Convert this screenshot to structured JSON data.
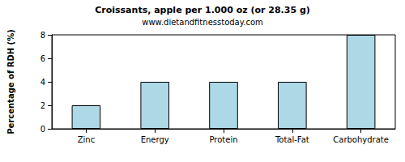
{
  "chart_data": {
    "type": "bar",
    "title": "Croissants, apple per 1.000 oz (or 28.35 g)",
    "subtitle": "www.dietandfitnesstoday.com",
    "y_label": "Percentage of RDH (%)",
    "categories": [
      "Zinc",
      "Energy",
      "Protein",
      "Total-Fat",
      "Carbohydrate"
    ],
    "values": [
      2,
      4,
      4,
      4,
      8
    ],
    "color": "#add8e6",
    "ylim": [
      0,
      8
    ],
    "yticks": [
      0,
      2,
      4,
      6,
      8
    ],
    "grid": false
  }
}
